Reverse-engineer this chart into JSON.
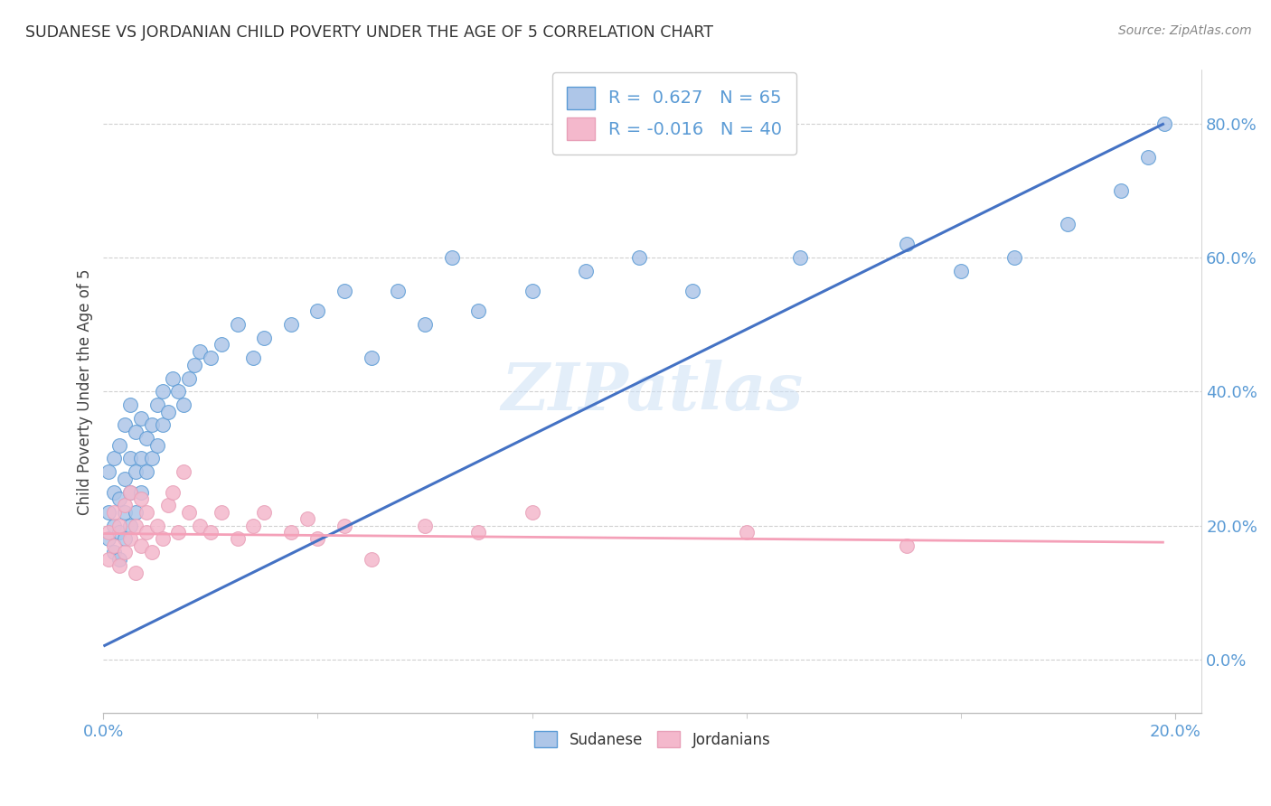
{
  "title": "SUDANESE VS JORDANIAN CHILD POVERTY UNDER THE AGE OF 5 CORRELATION CHART",
  "source": "Source: ZipAtlas.com",
  "ylabel": "Child Poverty Under the Age of 5",
  "ytick_vals": [
    0.0,
    0.2,
    0.4,
    0.6,
    0.8
  ],
  "ytick_labels": [
    "0.0%",
    "20.0%",
    "40.0%",
    "60.0%",
    "80.0%"
  ],
  "xtick_vals": [
    0.0,
    0.2
  ],
  "xtick_labels": [
    "0.0%",
    "20.0%"
  ],
  "xrange": [
    0.0,
    0.205
  ],
  "yrange": [
    -0.08,
    0.88
  ],
  "R_blue": 0.627,
  "N_blue": 65,
  "R_pink": -0.016,
  "N_pink": 40,
  "blue_scatter_color": "#aec6e8",
  "blue_edge_color": "#5b9bd5",
  "pink_scatter_color": "#f4b8cc",
  "pink_edge_color": "#e8a0b8",
  "blue_line_color": "#4472c4",
  "pink_line_color": "#f4a0b8",
  "legend_blue_label": "Sudanese",
  "legend_pink_label": "Jordanians",
  "watermark": "ZIPatlas",
  "sudanese_x": [
    0.001,
    0.001,
    0.001,
    0.002,
    0.002,
    0.002,
    0.002,
    0.003,
    0.003,
    0.003,
    0.003,
    0.004,
    0.004,
    0.004,
    0.004,
    0.005,
    0.005,
    0.005,
    0.005,
    0.006,
    0.006,
    0.006,
    0.007,
    0.007,
    0.007,
    0.008,
    0.008,
    0.009,
    0.009,
    0.01,
    0.01,
    0.011,
    0.011,
    0.012,
    0.013,
    0.014,
    0.015,
    0.016,
    0.017,
    0.018,
    0.02,
    0.022,
    0.025,
    0.028,
    0.03,
    0.035,
    0.04,
    0.045,
    0.05,
    0.055,
    0.06,
    0.065,
    0.07,
    0.08,
    0.09,
    0.1,
    0.11,
    0.13,
    0.15,
    0.16,
    0.17,
    0.18,
    0.19,
    0.195,
    0.198
  ],
  "sudanese_y": [
    0.18,
    0.22,
    0.28,
    0.16,
    0.2,
    0.25,
    0.3,
    0.15,
    0.19,
    0.24,
    0.32,
    0.18,
    0.22,
    0.27,
    0.35,
    0.2,
    0.25,
    0.3,
    0.38,
    0.22,
    0.28,
    0.34,
    0.25,
    0.3,
    0.36,
    0.28,
    0.33,
    0.3,
    0.35,
    0.32,
    0.38,
    0.35,
    0.4,
    0.37,
    0.42,
    0.4,
    0.38,
    0.42,
    0.44,
    0.46,
    0.45,
    0.47,
    0.5,
    0.45,
    0.48,
    0.5,
    0.52,
    0.55,
    0.45,
    0.55,
    0.5,
    0.6,
    0.52,
    0.55,
    0.58,
    0.6,
    0.55,
    0.6,
    0.62,
    0.58,
    0.6,
    0.65,
    0.7,
    0.75,
    0.8
  ],
  "jordanian_x": [
    0.001,
    0.001,
    0.002,
    0.002,
    0.003,
    0.003,
    0.004,
    0.004,
    0.005,
    0.005,
    0.006,
    0.006,
    0.007,
    0.007,
    0.008,
    0.008,
    0.009,
    0.01,
    0.011,
    0.012,
    0.013,
    0.014,
    0.015,
    0.016,
    0.018,
    0.02,
    0.022,
    0.025,
    0.028,
    0.03,
    0.035,
    0.038,
    0.04,
    0.045,
    0.05,
    0.06,
    0.07,
    0.08,
    0.12,
    0.15
  ],
  "jordanian_y": [
    0.15,
    0.19,
    0.17,
    0.22,
    0.14,
    0.2,
    0.16,
    0.23,
    0.18,
    0.25,
    0.13,
    0.2,
    0.17,
    0.24,
    0.19,
    0.22,
    0.16,
    0.2,
    0.18,
    0.23,
    0.25,
    0.19,
    0.28,
    0.22,
    0.2,
    0.19,
    0.22,
    0.18,
    0.2,
    0.22,
    0.19,
    0.21,
    0.18,
    0.2,
    0.15,
    0.2,
    0.19,
    0.22,
    0.19,
    0.17
  ],
  "blue_line_x": [
    0.0,
    0.198
  ],
  "blue_line_y": [
    0.02,
    0.8
  ],
  "pink_line_x": [
    0.0,
    0.198
  ],
  "pink_line_y": [
    0.188,
    0.175
  ]
}
